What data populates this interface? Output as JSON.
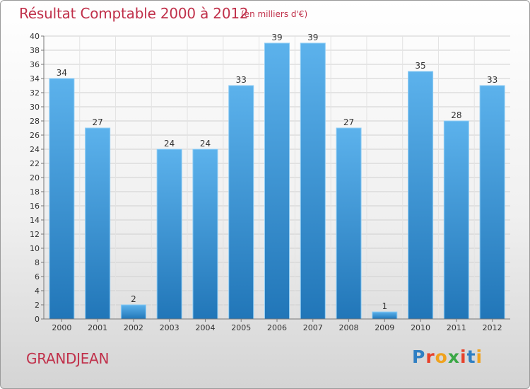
{
  "header": {
    "title": "Résultat Comptable 2000 à 2012",
    "subtitle": "(en milliers d'€)"
  },
  "footer": {
    "commune": "GRANDJEAN",
    "logo_text": "Proxiti"
  },
  "colors": {
    "title": "#c0304a",
    "bar_top": "#5cb2ec",
    "bar_bottom": "#2176b8",
    "logo_letters": [
      "#2f7fc3",
      "#e7412a",
      "#f0a21d",
      "#3aa745",
      "#e7412a",
      "#2f7fc3",
      "#f0a21d"
    ]
  },
  "chart_data": {
    "type": "bar",
    "title": "Résultat Comptable 2000 à 2012",
    "subtitle": "(en milliers d'€)",
    "xlabel": "",
    "ylabel": "",
    "categories": [
      "2000",
      "2001",
      "2002",
      "2003",
      "2004",
      "2005",
      "2006",
      "2007",
      "2008",
      "2009",
      "2010",
      "2011",
      "2012"
    ],
    "values": [
      34,
      27,
      2,
      24,
      24,
      33,
      39,
      39,
      27,
      1,
      35,
      28,
      33
    ],
    "ylim": [
      0,
      40
    ],
    "ytick_step": 2,
    "grid": true
  }
}
